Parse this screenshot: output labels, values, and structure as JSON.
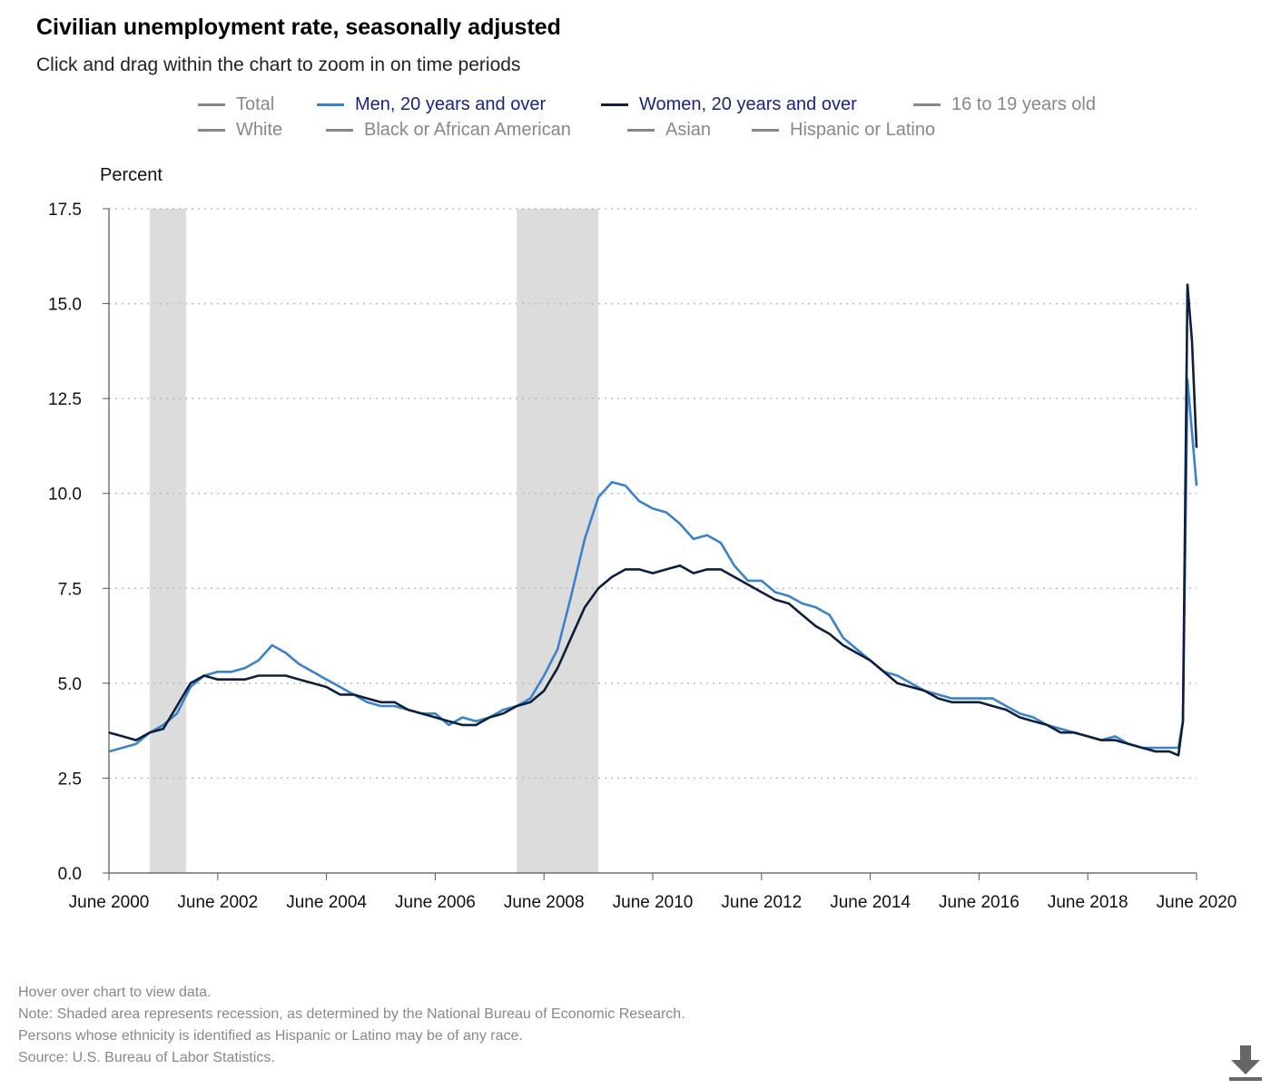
{
  "title": "Civilian unemployment rate, seasonally adjusted",
  "subtitle": "Click and drag within the chart to zoom in on time periods",
  "legend": [
    {
      "label": "Total",
      "active": false
    },
    {
      "label": "Men, 20 years and over",
      "active": true
    },
    {
      "label": "Women, 20 years and over",
      "active": true
    },
    {
      "label": "16 to 19 years old",
      "active": false
    },
    {
      "label": "White",
      "active": false
    },
    {
      "label": "Black or African American",
      "active": false
    },
    {
      "label": "Asian",
      "active": false
    },
    {
      "label": "Hispanic or Latino",
      "active": false
    }
  ],
  "colors": {
    "men": "#3b82c8",
    "women": "#0d1f3c",
    "inactive": "#888888",
    "active_text": "#1a237e",
    "recession": "#dcdcdc",
    "grid": "#bbbbbb"
  },
  "footnotes": [
    "Hover over chart to view data.",
    "Note: Shaded area represents recession, as determined by the National Bureau of Economic Research.",
    "Persons whose ethnicity is identified as Hispanic or Latino may be of any race.",
    "Source: U.S. Bureau of Labor Statistics."
  ],
  "download_icon": "download-icon",
  "chart_data": {
    "type": "line",
    "ylabel": "Percent",
    "xlabel": "",
    "ylim": [
      0,
      17.5
    ],
    "yticks": [
      "0.0",
      "2.5",
      "5.0",
      "7.5",
      "10.0",
      "12.5",
      "15.0",
      "17.5"
    ],
    "xticks": [
      "June 2000",
      "June 2002",
      "June 2004",
      "June 2006",
      "June 2008",
      "June 2010",
      "June 2012",
      "June 2014",
      "June 2016",
      "June 2018",
      "June 2020"
    ],
    "xrange": [
      "2000-06",
      "2020-06"
    ],
    "grid": "horizontal dotted",
    "legend_position": "top",
    "recessions": [
      [
        "2001-03",
        "2001-11"
      ],
      [
        "2007-12",
        "2009-06"
      ]
    ],
    "series": [
      {
        "name": "Men, 20 years and over",
        "points": [
          [
            "2000-06",
            3.2
          ],
          [
            "2000-09",
            3.3
          ],
          [
            "2000-12",
            3.4
          ],
          [
            "2001-03",
            3.7
          ],
          [
            "2001-06",
            3.9
          ],
          [
            "2001-09",
            4.2
          ],
          [
            "2001-12",
            4.9
          ],
          [
            "2002-03",
            5.2
          ],
          [
            "2002-06",
            5.3
          ],
          [
            "2002-09",
            5.3
          ],
          [
            "2002-12",
            5.4
          ],
          [
            "2003-03",
            5.6
          ],
          [
            "2003-06",
            6.0
          ],
          [
            "2003-09",
            5.8
          ],
          [
            "2003-12",
            5.5
          ],
          [
            "2004-03",
            5.3
          ],
          [
            "2004-06",
            5.1
          ],
          [
            "2004-09",
            4.9
          ],
          [
            "2004-12",
            4.7
          ],
          [
            "2005-03",
            4.5
          ],
          [
            "2005-06",
            4.4
          ],
          [
            "2005-09",
            4.4
          ],
          [
            "2005-12",
            4.3
          ],
          [
            "2006-03",
            4.2
          ],
          [
            "2006-06",
            4.2
          ],
          [
            "2006-09",
            3.9
          ],
          [
            "2006-12",
            4.1
          ],
          [
            "2007-03",
            4.0
          ],
          [
            "2007-06",
            4.1
          ],
          [
            "2007-09",
            4.3
          ],
          [
            "2007-12",
            4.4
          ],
          [
            "2008-03",
            4.6
          ],
          [
            "2008-06",
            5.2
          ],
          [
            "2008-09",
            5.9
          ],
          [
            "2008-12",
            7.3
          ],
          [
            "2009-03",
            8.8
          ],
          [
            "2009-06",
            9.9
          ],
          [
            "2009-09",
            10.3
          ],
          [
            "2009-12",
            10.2
          ],
          [
            "2010-03",
            9.8
          ],
          [
            "2010-06",
            9.6
          ],
          [
            "2010-09",
            9.5
          ],
          [
            "2010-12",
            9.2
          ],
          [
            "2011-03",
            8.8
          ],
          [
            "2011-06",
            8.9
          ],
          [
            "2011-09",
            8.7
          ],
          [
            "2011-12",
            8.1
          ],
          [
            "2012-03",
            7.7
          ],
          [
            "2012-06",
            7.7
          ],
          [
            "2012-09",
            7.4
          ],
          [
            "2012-12",
            7.3
          ],
          [
            "2013-03",
            7.1
          ],
          [
            "2013-06",
            7.0
          ],
          [
            "2013-09",
            6.8
          ],
          [
            "2013-12",
            6.2
          ],
          [
            "2014-03",
            5.9
          ],
          [
            "2014-06",
            5.6
          ],
          [
            "2014-09",
            5.3
          ],
          [
            "2014-12",
            5.2
          ],
          [
            "2015-03",
            5.0
          ],
          [
            "2015-06",
            4.8
          ],
          [
            "2015-09",
            4.7
          ],
          [
            "2015-12",
            4.6
          ],
          [
            "2016-03",
            4.6
          ],
          [
            "2016-06",
            4.6
          ],
          [
            "2016-09",
            4.6
          ],
          [
            "2016-12",
            4.4
          ],
          [
            "2017-03",
            4.2
          ],
          [
            "2017-06",
            4.1
          ],
          [
            "2017-09",
            3.9
          ],
          [
            "2017-12",
            3.8
          ],
          [
            "2018-03",
            3.7
          ],
          [
            "2018-06",
            3.6
          ],
          [
            "2018-09",
            3.5
          ],
          [
            "2018-12",
            3.6
          ],
          [
            "2019-03",
            3.4
          ],
          [
            "2019-06",
            3.3
          ],
          [
            "2019-09",
            3.3
          ],
          [
            "2019-12",
            3.3
          ],
          [
            "2020-02",
            3.3
          ],
          [
            "2020-03",
            4.0
          ],
          [
            "2020-04",
            13.0
          ],
          [
            "2020-05",
            11.6
          ],
          [
            "2020-06",
            10.2
          ]
        ]
      },
      {
        "name": "Women, 20 years and over",
        "points": [
          [
            "2000-06",
            3.7
          ],
          [
            "2000-09",
            3.6
          ],
          [
            "2000-12",
            3.5
          ],
          [
            "2001-03",
            3.7
          ],
          [
            "2001-06",
            3.8
          ],
          [
            "2001-09",
            4.4
          ],
          [
            "2001-12",
            5.0
          ],
          [
            "2002-03",
            5.2
          ],
          [
            "2002-06",
            5.1
          ],
          [
            "2002-09",
            5.1
          ],
          [
            "2002-12",
            5.1
          ],
          [
            "2003-03",
            5.2
          ],
          [
            "2003-06",
            5.2
          ],
          [
            "2003-09",
            5.2
          ],
          [
            "2003-12",
            5.1
          ],
          [
            "2004-03",
            5.0
          ],
          [
            "2004-06",
            4.9
          ],
          [
            "2004-09",
            4.7
          ],
          [
            "2004-12",
            4.7
          ],
          [
            "2005-03",
            4.6
          ],
          [
            "2005-06",
            4.5
          ],
          [
            "2005-09",
            4.5
          ],
          [
            "2005-12",
            4.3
          ],
          [
            "2006-03",
            4.2
          ],
          [
            "2006-06",
            4.1
          ],
          [
            "2006-09",
            4.0
          ],
          [
            "2006-12",
            3.9
          ],
          [
            "2007-03",
            3.9
          ],
          [
            "2007-06",
            4.1
          ],
          [
            "2007-09",
            4.2
          ],
          [
            "2007-12",
            4.4
          ],
          [
            "2008-03",
            4.5
          ],
          [
            "2008-06",
            4.8
          ],
          [
            "2008-09",
            5.4
          ],
          [
            "2008-12",
            6.2
          ],
          [
            "2009-03",
            7.0
          ],
          [
            "2009-06",
            7.5
          ],
          [
            "2009-09",
            7.8
          ],
          [
            "2009-12",
            8.0
          ],
          [
            "2010-03",
            8.0
          ],
          [
            "2010-06",
            7.9
          ],
          [
            "2010-09",
            8.0
          ],
          [
            "2010-12",
            8.1
          ],
          [
            "2011-03",
            7.9
          ],
          [
            "2011-06",
            8.0
          ],
          [
            "2011-09",
            8.0
          ],
          [
            "2011-12",
            7.8
          ],
          [
            "2012-03",
            7.6
          ],
          [
            "2012-06",
            7.4
          ],
          [
            "2012-09",
            7.2
          ],
          [
            "2012-12",
            7.1
          ],
          [
            "2013-03",
            6.8
          ],
          [
            "2013-06",
            6.5
          ],
          [
            "2013-09",
            6.3
          ],
          [
            "2013-12",
            6.0
          ],
          [
            "2014-03",
            5.8
          ],
          [
            "2014-06",
            5.6
          ],
          [
            "2014-09",
            5.3
          ],
          [
            "2014-12",
            5.0
          ],
          [
            "2015-03",
            4.9
          ],
          [
            "2015-06",
            4.8
          ],
          [
            "2015-09",
            4.6
          ],
          [
            "2015-12",
            4.5
          ],
          [
            "2016-03",
            4.5
          ],
          [
            "2016-06",
            4.5
          ],
          [
            "2016-09",
            4.4
          ],
          [
            "2016-12",
            4.3
          ],
          [
            "2017-03",
            4.1
          ],
          [
            "2017-06",
            4.0
          ],
          [
            "2017-09",
            3.9
          ],
          [
            "2017-12",
            3.7
          ],
          [
            "2018-03",
            3.7
          ],
          [
            "2018-06",
            3.6
          ],
          [
            "2018-09",
            3.5
          ],
          [
            "2018-12",
            3.5
          ],
          [
            "2019-03",
            3.4
          ],
          [
            "2019-06",
            3.3
          ],
          [
            "2019-09",
            3.2
          ],
          [
            "2019-12",
            3.2
          ],
          [
            "2020-02",
            3.1
          ],
          [
            "2020-03",
            4.0
          ],
          [
            "2020-04",
            15.5
          ],
          [
            "2020-05",
            14.0
          ],
          [
            "2020-06",
            11.2
          ]
        ]
      }
    ]
  }
}
